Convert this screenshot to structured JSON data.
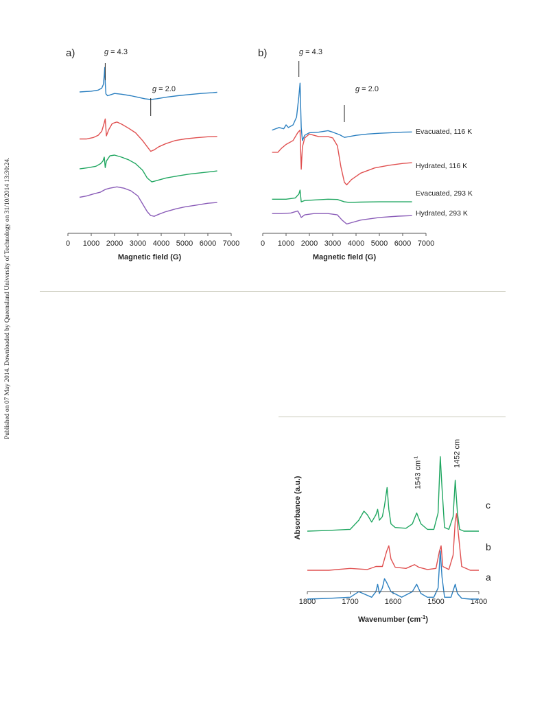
{
  "side_note": "Published on 07 May 2014. Downloaded by Queensland University of Technology on 31/10/2014 13:30:24.",
  "chart_data": [
    {
      "id": "a",
      "type": "line",
      "panel_label": "a)",
      "xlabel": "Magnetic field (G)",
      "xlim": [
        0,
        7000
      ],
      "xticks": [
        0,
        1000,
        2000,
        3000,
        4000,
        5000,
        6000,
        7000
      ],
      "annotations": [
        {
          "text": "g = 4.3",
          "x": 1600
        },
        {
          "text": "g = 2.0",
          "x": 3550
        }
      ],
      "series": [
        {
          "color": "#2a7fc0",
          "x": [
            500,
            1000,
            1300,
            1450,
            1520,
            1560,
            1580,
            1600,
            1630,
            1700,
            1800,
            2000,
            2300,
            2700,
            3000,
            3300,
            3550,
            3800,
            4200,
            4700,
            5200,
            5700,
            6200,
            6400
          ],
          "y": [
            0.8,
            0.82,
            0.85,
            0.9,
            1.0,
            1.25,
            1.45,
            1.05,
            0.75,
            0.7,
            0.72,
            0.76,
            0.74,
            0.7,
            0.66,
            0.62,
            0.6,
            0.62,
            0.66,
            0.7,
            0.73,
            0.76,
            0.78,
            0.79
          ]
        },
        {
          "color": "#e05050",
          "x": [
            500,
            800,
            1100,
            1300,
            1450,
            1550,
            1600,
            1650,
            1750,
            1900,
            2100,
            2300,
            2600,
            2900,
            3200,
            3400,
            3550,
            3700,
            3900,
            4200,
            4600,
            5000,
            5500,
            6000,
            6400
          ],
          "y": [
            0.3,
            0.3,
            0.35,
            0.42,
            0.55,
            0.8,
            0.95,
            0.4,
            0.6,
            0.8,
            0.85,
            0.78,
            0.65,
            0.5,
            0.25,
            0.05,
            -0.1,
            -0.05,
            0.05,
            0.15,
            0.25,
            0.3,
            0.34,
            0.37,
            0.38
          ]
        },
        {
          "color": "#1fa660",
          "x": [
            500,
            900,
            1200,
            1400,
            1500,
            1560,
            1600,
            1650,
            1800,
            2000,
            2300,
            2600,
            2900,
            3200,
            3400,
            3600,
            3800,
            4200,
            4700,
            5200,
            5700,
            6200,
            6400
          ],
          "y": [
            0.05,
            0.1,
            0.15,
            0.25,
            0.35,
            0.5,
            0.1,
            0.35,
            0.55,
            0.58,
            0.5,
            0.4,
            0.25,
            0.0,
            -0.3,
            -0.45,
            -0.4,
            -0.3,
            -0.22,
            -0.15,
            -0.1,
            -0.05,
            -0.03
          ]
        },
        {
          "color": "#8a5cb8",
          "x": [
            500,
            800,
            1100,
            1400,
            1600,
            1800,
            2100,
            2400,
            2700,
            3000,
            3200,
            3400,
            3550,
            3700,
            3900,
            4200,
            4600,
            5000,
            5500,
            6000,
            6400
          ],
          "y": [
            -0.25,
            -0.2,
            -0.12,
            -0.05,
            0.05,
            0.1,
            0.15,
            0.1,
            0.0,
            -0.2,
            -0.5,
            -0.8,
            -0.95,
            -0.98,
            -0.9,
            -0.8,
            -0.7,
            -0.62,
            -0.55,
            -0.48,
            -0.45
          ]
        }
      ]
    },
    {
      "id": "b",
      "type": "line",
      "panel_label": "b)",
      "xlabel": "Magnetic field (G)",
      "xlim": [
        0,
        7000
      ],
      "xticks": [
        0,
        1000,
        2000,
        3000,
        4000,
        5000,
        6000,
        7000
      ],
      "annotations": [
        {
          "text": "g = 4.3",
          "x": 1550
        },
        {
          "text": "g = 2.0",
          "x": 3500
        }
      ],
      "series": [
        {
          "name": "Evacuated, 116 K",
          "color": "#2a7fc0",
          "x": [
            400,
            700,
            900,
            1000,
            1100,
            1300,
            1450,
            1550,
            1600,
            1650,
            1700,
            1800,
            2000,
            2400,
            2800,
            3000,
            3300,
            3500,
            3700,
            4000,
            4500,
            5000,
            5500,
            6000,
            6400
          ],
          "y": [
            0.8,
            0.9,
            0.85,
            1.0,
            0.9,
            1.0,
            1.3,
            2.1,
            2.6,
            0.9,
            0.4,
            0.6,
            0.7,
            0.72,
            0.78,
            0.72,
            0.62,
            0.52,
            0.55,
            0.6,
            0.65,
            0.68,
            0.7,
            0.72,
            0.73
          ]
        },
        {
          "name": "Hydrated, 116 K",
          "color": "#e05050",
          "x": [
            400,
            650,
            800,
            1000,
            1300,
            1500,
            1600,
            1650,
            1700,
            1800,
            2000,
            2400,
            2800,
            3000,
            3200,
            3350,
            3500,
            3600,
            3800,
            4200,
            4800,
            5400,
            6000,
            6400
          ],
          "y": [
            -0.05,
            -0.05,
            0.1,
            0.25,
            0.4,
            0.7,
            0.8,
            -0.7,
            0.15,
            0.5,
            0.65,
            0.55,
            0.55,
            0.5,
            0.2,
            -0.6,
            -1.2,
            -1.3,
            -1.1,
            -0.85,
            -0.65,
            -0.55,
            -0.48,
            -0.45
          ]
        },
        {
          "name": "Evacuated, 293 K",
          "color": "#1fa660",
          "x": [
            400,
            1000,
            1400,
            1550,
            1600,
            1650,
            1800,
            2200,
            2800,
            3200,
            3500,
            3700,
            4200,
            5000,
            6000,
            6400
          ],
          "y": [
            -1.85,
            -1.85,
            -1.8,
            -1.65,
            -1.5,
            -1.95,
            -1.9,
            -1.88,
            -1.85,
            -1.86,
            -1.95,
            -1.97,
            -1.96,
            -1.95,
            -1.95,
            -1.95
          ]
        },
        {
          "name": "Hydrated, 293 K",
          "color": "#8a5cb8",
          "x": [
            400,
            800,
            1200,
            1500,
            1600,
            1650,
            1800,
            2200,
            2800,
            3200,
            3400,
            3600,
            3800,
            4200,
            5000,
            5800,
            6400
          ],
          "y": [
            -2.4,
            -2.4,
            -2.38,
            -2.3,
            -2.45,
            -2.55,
            -2.45,
            -2.4,
            -2.4,
            -2.45,
            -2.65,
            -2.8,
            -2.75,
            -2.65,
            -2.55,
            -2.5,
            -2.48
          ]
        }
      ]
    },
    {
      "id": "c",
      "type": "line",
      "ylabel": "Absorbance (a.u.)",
      "xlabel": "Wavenumber (cm",
      "xlabel_sup": "-1",
      "xlabel_end": ")",
      "xlim": [
        1800,
        1400
      ],
      "xticks": [
        1800,
        1700,
        1600,
        1500,
        1400
      ],
      "annotations": [
        {
          "text": "1543 cm",
          "sup": "-1",
          "x": 1543
        },
        {
          "text": "1452 cm",
          "sup": "-1",
          "x": 1452
        }
      ],
      "series": [
        {
          "name": "c",
          "color": "#1fa660",
          "x": [
            1800,
            1750,
            1700,
            1680,
            1668,
            1660,
            1650,
            1640,
            1636,
            1632,
            1625,
            1620,
            1614,
            1610,
            1605,
            1595,
            1570,
            1555,
            1545,
            1535,
            1520,
            1505,
            1495,
            1490,
            1486,
            1480,
            1470,
            1460,
            1455,
            1450,
            1445,
            1435,
            1420,
            1400
          ],
          "y": [
            2.0,
            2.02,
            2.05,
            2.3,
            2.55,
            2.45,
            2.25,
            2.45,
            2.6,
            2.3,
            2.4,
            2.7,
            3.2,
            2.6,
            2.2,
            2.1,
            2.08,
            2.2,
            2.5,
            2.2,
            2.05,
            2.05,
            2.5,
            4.05,
            3.2,
            2.1,
            2.05,
            2.4,
            3.4,
            2.5,
            2.05,
            2.0,
            2.0,
            2.0
          ]
        },
        {
          "name": "b",
          "color": "#e05050",
          "x": [
            1800,
            1750,
            1700,
            1660,
            1640,
            1625,
            1615,
            1610,
            1605,
            1595,
            1570,
            1550,
            1540,
            1520,
            1500,
            1492,
            1488,
            1484,
            1470,
            1460,
            1455,
            1452,
            1448,
            1440,
            1420,
            1400
          ],
          "y": [
            1.0,
            1.0,
            1.05,
            1.02,
            1.1,
            1.1,
            1.5,
            1.65,
            1.3,
            1.08,
            1.05,
            1.15,
            1.08,
            1.02,
            1.05,
            1.5,
            1.65,
            1.1,
            1.02,
            1.4,
            2.3,
            2.5,
            2.0,
            1.1,
            1.0,
            1.0
          ]
        },
        {
          "name": "a",
          "color": "#2a7fc0",
          "x": [
            1800,
            1750,
            1700,
            1680,
            1670,
            1650,
            1640,
            1636,
            1632,
            1625,
            1620,
            1615,
            1605,
            1580,
            1555,
            1545,
            1535,
            1520,
            1505,
            1495,
            1490,
            1486,
            1480,
            1465,
            1455,
            1450,
            1440,
            1420,
            1400
          ],
          "y": [
            0.0,
            0.02,
            0.05,
            0.2,
            0.15,
            0.05,
            0.2,
            0.4,
            0.15,
            0.3,
            0.55,
            0.45,
            0.2,
            0.05,
            0.2,
            0.4,
            0.15,
            0.05,
            0.05,
            0.3,
            1.3,
            0.6,
            0.05,
            0.05,
            0.4,
            0.15,
            0.02,
            0.0,
            0.0
          ]
        }
      ]
    }
  ]
}
